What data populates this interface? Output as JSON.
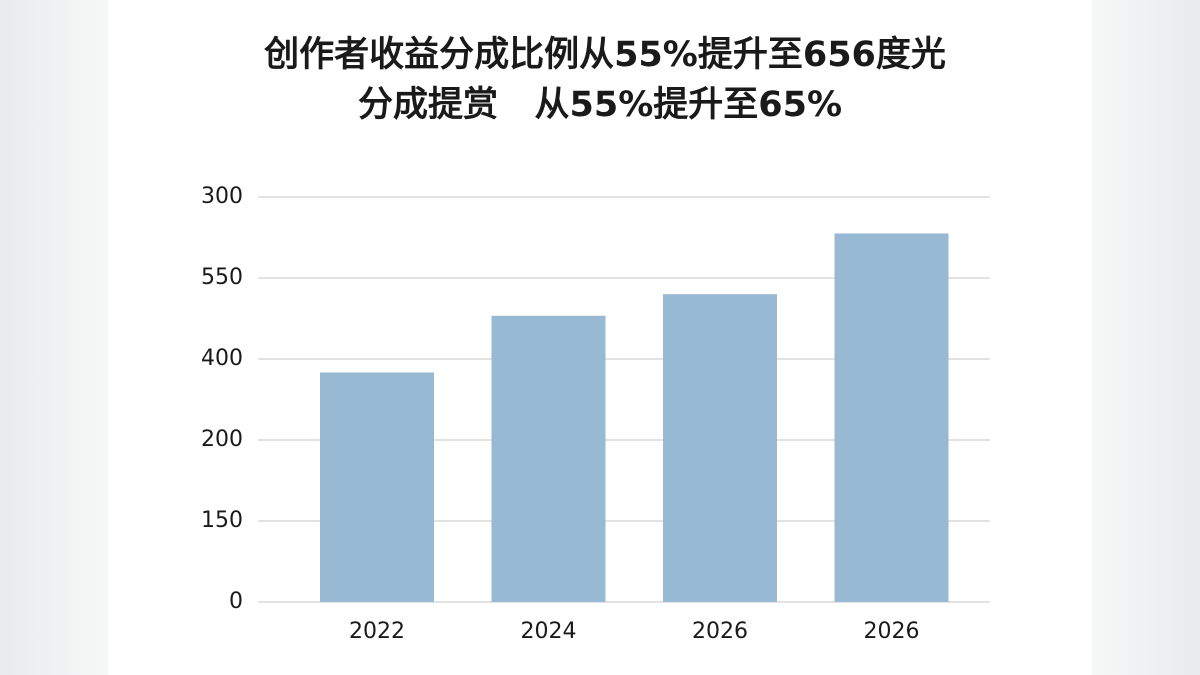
{
  "chart_data": {
    "type": "bar",
    "title": [
      "创作者收益分成比例从55%提升至656度光",
      "分成提赏   从55%提升至65%"
    ],
    "categories": [
      "2022",
      "2024",
      "2026",
      "2026"
    ],
    "values": [
      170,
      212,
      228,
      273
    ],
    "color": "#97b9d3",
    "ylim": [
      0,
      300
    ],
    "yticks": [
      0,
      {
        "value": 60,
        "label": "150"
      },
      {
        "value": 120,
        "label": "200"
      },
      {
        "value": 180,
        "label": "400"
      },
      {
        "value": 240,
        "label": "550"
      },
      300
    ],
    "grid": true
  }
}
